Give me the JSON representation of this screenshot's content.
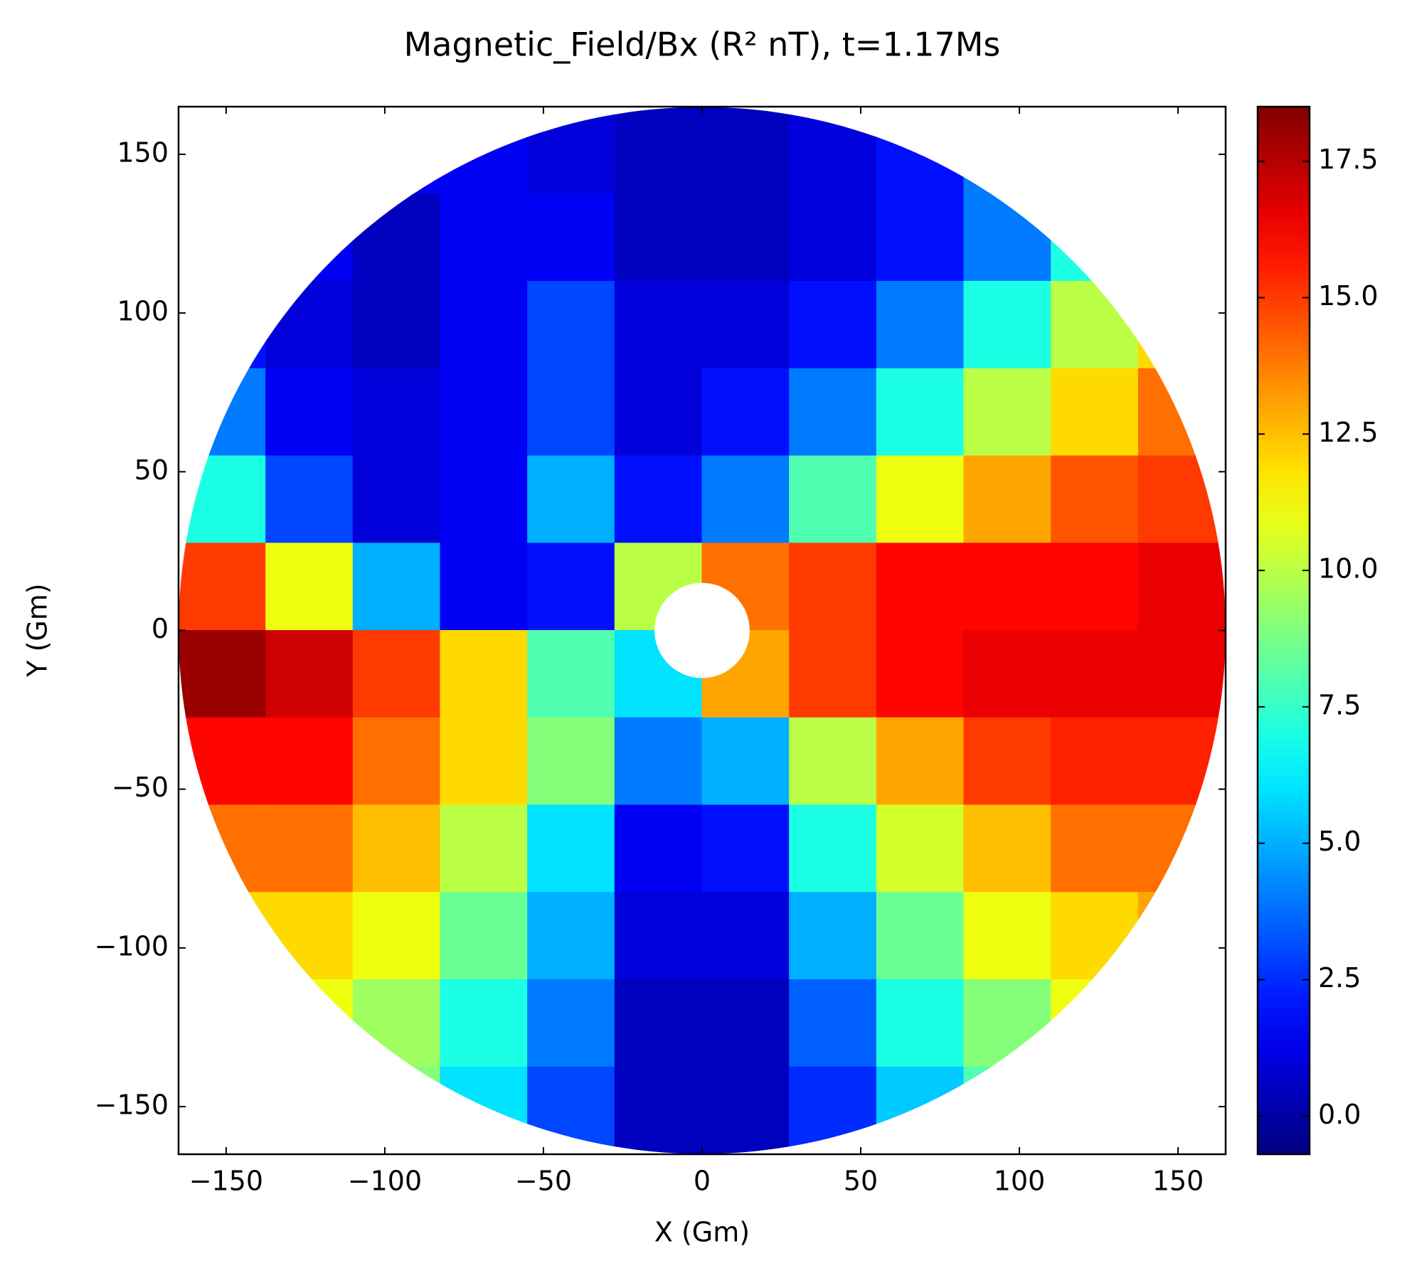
{
  "chart_data": {
    "type": "heatmap",
    "title": "Magnetic_Field/Bx (R² nT), t=1.17Ms",
    "x_label": "X (Gm)",
    "y_label": "Y (Gm)",
    "colormap": "jet",
    "clim": [
      -0.7,
      18.5
    ],
    "cticks": [
      {
        "value": 0,
        "label": "0.0"
      },
      2.5,
      {
        "value": 5,
        "label": "5.0"
      },
      7.5,
      {
        "value": 10,
        "label": "10.0"
      },
      12.5,
      {
        "value": 15,
        "label": "15.0"
      },
      17.5
    ],
    "xlim": [
      -165,
      165
    ],
    "ylim": [
      -165,
      165
    ],
    "xticks": [
      {
        "value": -150,
        "label": "−150"
      },
      {
        "value": -100,
        "label": "−100"
      },
      {
        "value": -50,
        "label": "−50"
      },
      0,
      50,
      100,
      150
    ],
    "yticks": [
      {
        "value": -150,
        "label": "−150"
      },
      {
        "value": -100,
        "label": "−100"
      },
      {
        "value": -50,
        "label": "−50"
      },
      0,
      50,
      100,
      150
    ],
    "radius": 165,
    "inner_radius": 15,
    "x": [
      -151.25,
      -123.75,
      -96.25,
      -68.75,
      -41.25,
      -13.75,
      13.75,
      41.25,
      68.75,
      96.25,
      123.75,
      151.25
    ],
    "y": [
      151.25,
      123.75,
      96.25,
      68.75,
      41.25,
      13.75,
      -13.75,
      -41.25,
      -68.75,
      -96.25,
      -123.75,
      -151.25
    ],
    "values": [
      [
        null,
        null,
        1.5,
        1.5,
        1,
        0.5,
        0.5,
        1,
        2,
        4,
        null,
        null
      ],
      [
        null,
        1.5,
        0.5,
        1.5,
        1.5,
        0.5,
        0.5,
        1,
        2,
        4,
        7,
        null
      ],
      [
        2,
        1,
        0.5,
        1.5,
        3,
        1,
        1,
        2,
        4,
        7,
        10,
        12
      ],
      [
        4,
        1.5,
        1,
        1.5,
        3,
        1,
        2,
        4,
        7,
        10,
        12,
        14
      ],
      [
        7,
        3,
        1,
        1.5,
        5,
        2,
        4,
        8,
        11,
        13,
        14.5,
        15
      ],
      [
        15,
        11,
        5,
        1.5,
        2,
        10,
        14,
        15,
        16,
        16,
        16,
        16.5
      ],
      [
        18,
        17,
        15,
        12,
        8,
        6,
        13,
        15,
        16,
        16.5,
        16.5,
        16.5
      ],
      [
        16,
        16,
        14,
        12,
        9,
        4,
        5,
        10,
        13,
        15,
        15.5,
        15.5
      ],
      [
        14,
        14,
        12.5,
        10,
        6,
        1.5,
        2,
        7,
        10.5,
        12.5,
        14,
        14
      ],
      [
        12,
        12,
        11,
        8.5,
        5,
        1,
        1,
        5,
        8.5,
        11,
        12,
        13
      ],
      [
        null,
        11,
        9.5,
        7,
        4,
        0.5,
        0.5,
        3.5,
        7,
        9,
        11,
        null
      ],
      [
        null,
        null,
        9,
        6,
        3,
        0.5,
        0.5,
        2.5,
        5.5,
        8,
        null,
        null
      ]
    ]
  }
}
